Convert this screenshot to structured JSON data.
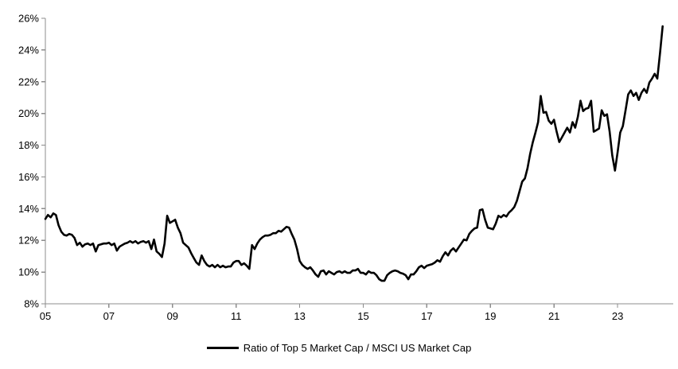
{
  "chart_data": {
    "type": "line",
    "title": "",
    "legend": [
      "Ratio of Top 5 Market Cap / MSCI US Market Cap"
    ],
    "legend_position": "bottom-center",
    "grid": false,
    "line_color": "#000000",
    "axis_color": "#8c8c8c",
    "label_color": "#000000",
    "xlim": [
      2005,
      2024.75
    ],
    "ylim": [
      8,
      26
    ],
    "x_ticks": {
      "values": [
        2005,
        2007,
        2009,
        2011,
        2013,
        2015,
        2017,
        2019,
        2021,
        2023
      ],
      "labels": [
        "05",
        "07",
        "09",
        "11",
        "13",
        "15",
        "17",
        "19",
        "21",
        "23"
      ]
    },
    "y_ticks": {
      "values": [
        8,
        10,
        12,
        14,
        16,
        18,
        20,
        22,
        24,
        26
      ],
      "labels": [
        "8%",
        "10%",
        "12%",
        "14%",
        "16%",
        "18%",
        "20%",
        "22%",
        "24%",
        "26%"
      ]
    },
    "series": [
      {
        "name": "Ratio of Top 5 Market Cap / MSCI US Market Cap",
        "cadence": "monthly",
        "start_year": 2005,
        "start_month": 1,
        "unit": "%",
        "values": [
          13.35,
          13.6,
          13.45,
          13.7,
          13.6,
          12.95,
          12.55,
          12.35,
          12.3,
          12.4,
          12.35,
          12.15,
          11.7,
          11.85,
          11.6,
          11.75,
          11.8,
          11.7,
          11.8,
          11.3,
          11.7,
          11.75,
          11.8,
          11.8,
          11.85,
          11.7,
          11.8,
          11.35,
          11.6,
          11.7,
          11.8,
          11.85,
          11.95,
          11.85,
          11.95,
          11.8,
          11.9,
          11.95,
          11.85,
          11.95,
          11.45,
          12.05,
          11.3,
          11.15,
          10.95,
          11.8,
          13.55,
          13.1,
          13.2,
          13.3,
          12.8,
          12.45,
          11.85,
          11.7,
          11.55,
          11.2,
          10.9,
          10.6,
          10.45,
          11.05,
          10.7,
          10.45,
          10.35,
          10.45,
          10.3,
          10.45,
          10.3,
          10.4,
          10.3,
          10.35,
          10.35,
          10.6,
          10.7,
          10.7,
          10.45,
          10.55,
          10.4,
          10.2,
          11.7,
          11.45,
          11.8,
          12.05,
          12.2,
          12.3,
          12.3,
          12.35,
          12.45,
          12.45,
          12.6,
          12.55,
          12.7,
          12.85,
          12.8,
          12.4,
          12.05,
          11.45,
          10.7,
          10.45,
          10.3,
          10.2,
          10.3,
          10.1,
          9.85,
          9.7,
          10.05,
          10.1,
          9.85,
          10.05,
          9.95,
          9.85,
          10.0,
          10.05,
          9.95,
          10.05,
          9.95,
          9.95,
          10.1,
          10.1,
          10.2,
          9.95,
          9.95,
          9.85,
          10.05,
          9.95,
          9.95,
          9.8,
          9.55,
          9.45,
          9.45,
          9.8,
          9.95,
          10.05,
          10.1,
          10.05,
          9.95,
          9.9,
          9.8,
          9.55,
          9.85,
          9.85,
          10.05,
          10.3,
          10.4,
          10.25,
          10.4,
          10.45,
          10.5,
          10.6,
          10.75,
          10.65,
          11.0,
          11.25,
          11.05,
          11.35,
          11.5,
          11.3,
          11.55,
          11.8,
          12.05,
          12.0,
          12.4,
          12.6,
          12.75,
          12.8,
          13.9,
          13.95,
          13.3,
          12.8,
          12.75,
          12.7,
          13.05,
          13.55,
          13.45,
          13.6,
          13.5,
          13.75,
          13.9,
          14.1,
          14.5,
          15.1,
          15.7,
          15.9,
          16.55,
          17.45,
          18.2,
          18.8,
          19.45,
          21.1,
          20.05,
          20.1,
          19.55,
          19.35,
          19.6,
          18.85,
          18.2,
          18.5,
          18.8,
          19.1,
          18.8,
          19.45,
          19.1,
          19.8,
          20.8,
          20.15,
          20.3,
          20.35,
          20.8,
          18.85,
          18.95,
          19.05,
          20.2,
          19.85,
          19.95,
          18.85,
          17.35,
          16.4,
          17.55,
          18.8,
          19.2,
          20.2,
          21.2,
          21.45,
          21.1,
          21.3,
          20.85,
          21.3,
          21.55,
          21.3,
          21.95,
          22.2,
          22.5,
          22.2,
          23.8,
          25.5
        ]
      }
    ]
  }
}
